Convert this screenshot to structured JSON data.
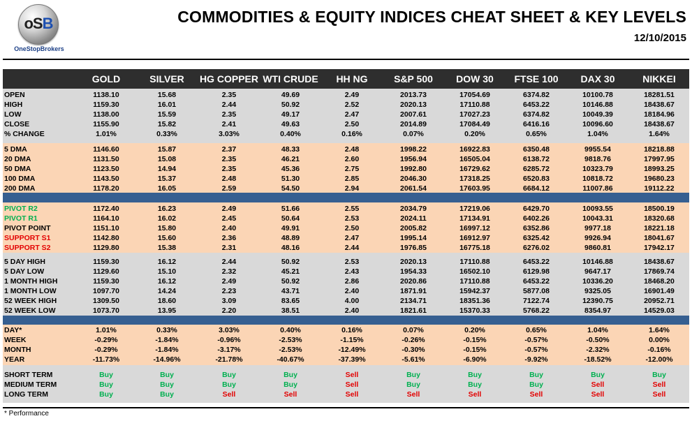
{
  "header": {
    "logo_text": "oSB",
    "logo_name": "OneStopBrokers",
    "title": "COMMODITIES & EQUITY INDICES CHEAT SHEET & KEY LEVELS",
    "date": "12/10/2015"
  },
  "columns": [
    "GOLD",
    "SILVER",
    "HG COPPER",
    "WTI CRUDE",
    "HH NG",
    "S&P 500",
    "DOW 30",
    "FTSE 100",
    "DAX 30",
    "NIKKEI"
  ],
  "colors": {
    "header_bg": "#2e2e2e",
    "grey_band": "#d9d9d9",
    "orange_band": "#fbd5b5",
    "separator": "#365f91",
    "pivot_green": "#00b050",
    "support_red": "#e30000",
    "buy": "#00b050",
    "sell": "#e30000"
  },
  "sections": [
    {
      "band": "g",
      "rows": [
        {
          "label": "OPEN",
          "values": [
            "1138.10",
            "15.68",
            "2.35",
            "49.69",
            "2.49",
            "2013.73",
            "17054.69",
            "6374.82",
            "10100.78",
            "18281.51"
          ]
        },
        {
          "label": "HIGH",
          "values": [
            "1159.30",
            "16.01",
            "2.44",
            "50.92",
            "2.52",
            "2020.13",
            "17110.88",
            "6453.22",
            "10146.88",
            "18438.67"
          ]
        },
        {
          "label": "LOW",
          "values": [
            "1138.00",
            "15.59",
            "2.35",
            "49.17",
            "2.47",
            "2007.61",
            "17027.23",
            "6374.82",
            "10049.39",
            "18184.96"
          ]
        },
        {
          "label": "CLOSE",
          "values": [
            "1155.90",
            "15.82",
            "2.41",
            "49.63",
            "2.50",
            "2014.89",
            "17084.49",
            "6416.16",
            "10096.60",
            "18438.67"
          ]
        },
        {
          "label": "% CHANGE",
          "values": [
            "1.01%",
            "0.33%",
            "3.03%",
            "0.40%",
            "0.16%",
            "0.07%",
            "0.20%",
            "0.65%",
            "1.04%",
            "1.64%"
          ]
        }
      ]
    },
    {
      "band": "o",
      "rows": [
        {
          "label": "5 DMA",
          "values": [
            "1146.60",
            "15.87",
            "2.37",
            "48.33",
            "2.48",
            "1998.22",
            "16922.83",
            "6350.48",
            "9955.54",
            "18218.88"
          ]
        },
        {
          "label": "20 DMA",
          "values": [
            "1131.50",
            "15.08",
            "2.35",
            "46.21",
            "2.60",
            "1956.94",
            "16505.04",
            "6138.72",
            "9818.76",
            "17997.95"
          ]
        },
        {
          "label": "50 DMA",
          "values": [
            "1123.50",
            "14.94",
            "2.35",
            "45.36",
            "2.75",
            "1992.80",
            "16729.62",
            "6285.72",
            "10323.79",
            "18993.25"
          ]
        },
        {
          "label": "100 DMA",
          "values": [
            "1143.50",
            "15.37",
            "2.48",
            "51.30",
            "2.85",
            "2046.30",
            "17318.25",
            "6520.83",
            "10818.72",
            "19680.23"
          ]
        },
        {
          "label": "200 DMA",
          "values": [
            "1178.20",
            "16.05",
            "2.59",
            "54.50",
            "2.94",
            "2061.54",
            "17603.95",
            "6684.12",
            "11007.86",
            "19112.22"
          ]
        }
      ]
    },
    {
      "band": "o",
      "rows": [
        {
          "label": "PIVOT R2",
          "label_color": "green",
          "values": [
            "1172.40",
            "16.23",
            "2.49",
            "51.66",
            "2.55",
            "2034.79",
            "17219.06",
            "6429.70",
            "10093.55",
            "18500.19"
          ]
        },
        {
          "label": "PIVOT R1",
          "label_color": "green",
          "values": [
            "1164.10",
            "16.02",
            "2.45",
            "50.64",
            "2.53",
            "2024.11",
            "17134.91",
            "6402.26",
            "10043.31",
            "18320.68"
          ]
        },
        {
          "label": "PIVOT POINT",
          "values": [
            "1151.10",
            "15.80",
            "2.40",
            "49.91",
            "2.50",
            "2005.82",
            "16997.12",
            "6352.86",
            "9977.18",
            "18221.18"
          ]
        },
        {
          "label": "SUPPORT S1",
          "label_color": "red",
          "values": [
            "1142.80",
            "15.60",
            "2.36",
            "48.89",
            "2.47",
            "1995.14",
            "16912.97",
            "6325.42",
            "9926.94",
            "18041.67"
          ]
        },
        {
          "label": "SUPPORT S2",
          "label_color": "red",
          "values": [
            "1129.80",
            "15.38",
            "2.31",
            "48.16",
            "2.44",
            "1976.85",
            "16775.18",
            "6276.02",
            "9860.81",
            "17942.17"
          ]
        }
      ]
    },
    {
      "band": "g",
      "rows": [
        {
          "label": "5 DAY HIGH",
          "values": [
            "1159.30",
            "16.12",
            "2.44",
            "50.92",
            "2.53",
            "2020.13",
            "17110.88",
            "6453.22",
            "10146.88",
            "18438.67"
          ]
        },
        {
          "label": "5 DAY LOW",
          "values": [
            "1129.60",
            "15.10",
            "2.32",
            "45.21",
            "2.43",
            "1954.33",
            "16502.10",
            "6129.98",
            "9647.17",
            "17869.74"
          ]
        },
        {
          "label": "1 MONTH HIGH",
          "values": [
            "1159.30",
            "16.12",
            "2.49",
            "50.92",
            "2.86",
            "2020.86",
            "17110.88",
            "6453.22",
            "10336.20",
            "18468.20"
          ]
        },
        {
          "label": "1 MONTH LOW",
          "values": [
            "1097.70",
            "14.24",
            "2.23",
            "43.71",
            "2.40",
            "1871.91",
            "15942.37",
            "5877.08",
            "9325.05",
            "16901.49"
          ]
        },
        {
          "label": "52 WEEK HIGH",
          "values": [
            "1309.50",
            "18.60",
            "3.09",
            "83.65",
            "4.00",
            "2134.71",
            "18351.36",
            "7122.74",
            "12390.75",
            "20952.71"
          ]
        },
        {
          "label": "52 WEEK LOW",
          "values": [
            "1073.70",
            "13.95",
            "2.20",
            "38.51",
            "2.40",
            "1821.61",
            "15370.33",
            "5768.22",
            "8354.97",
            "14529.03"
          ]
        }
      ]
    },
    {
      "band": "o",
      "rows": [
        {
          "label": "DAY*",
          "values": [
            "1.01%",
            "0.33%",
            "3.03%",
            "0.40%",
            "0.16%",
            "0.07%",
            "0.20%",
            "0.65%",
            "1.04%",
            "1.64%"
          ]
        },
        {
          "label": "WEEK",
          "values": [
            "-0.29%",
            "-1.84%",
            "-0.96%",
            "-2.53%",
            "-1.15%",
            "-0.26%",
            "-0.15%",
            "-0.57%",
            "-0.50%",
            "0.00%"
          ]
        },
        {
          "label": "MONTH",
          "values": [
            "-0.29%",
            "-1.84%",
            "-3.17%",
            "-2.53%",
            "-12.49%",
            "-0.30%",
            "-0.15%",
            "-0.57%",
            "-2.32%",
            "-0.16%"
          ]
        },
        {
          "label": "YEAR",
          "values": [
            "-11.73%",
            "-14.96%",
            "-21.78%",
            "-40.67%",
            "-37.39%",
            "-5.61%",
            "-6.90%",
            "-9.92%",
            "-18.52%",
            "-12.00%"
          ]
        }
      ]
    },
    {
      "band": "g",
      "signal": true,
      "rows": [
        {
          "label": "SHORT TERM",
          "values": [
            "Buy",
            "Buy",
            "Buy",
            "Buy",
            "Sell",
            "Buy",
            "Buy",
            "Buy",
            "Buy",
            "Buy"
          ]
        },
        {
          "label": "MEDIUM TERM",
          "values": [
            "Buy",
            "Buy",
            "Buy",
            "Buy",
            "Sell",
            "Buy",
            "Buy",
            "Buy",
            "Sell",
            "Sell"
          ]
        },
        {
          "label": "LONG TERM",
          "values": [
            "Buy",
            "Buy",
            "Sell",
            "Sell",
            "Sell",
            "Sell",
            "Sell",
            "Sell",
            "Sell",
            "Sell"
          ]
        }
      ]
    }
  ],
  "footnote": "* Performance"
}
